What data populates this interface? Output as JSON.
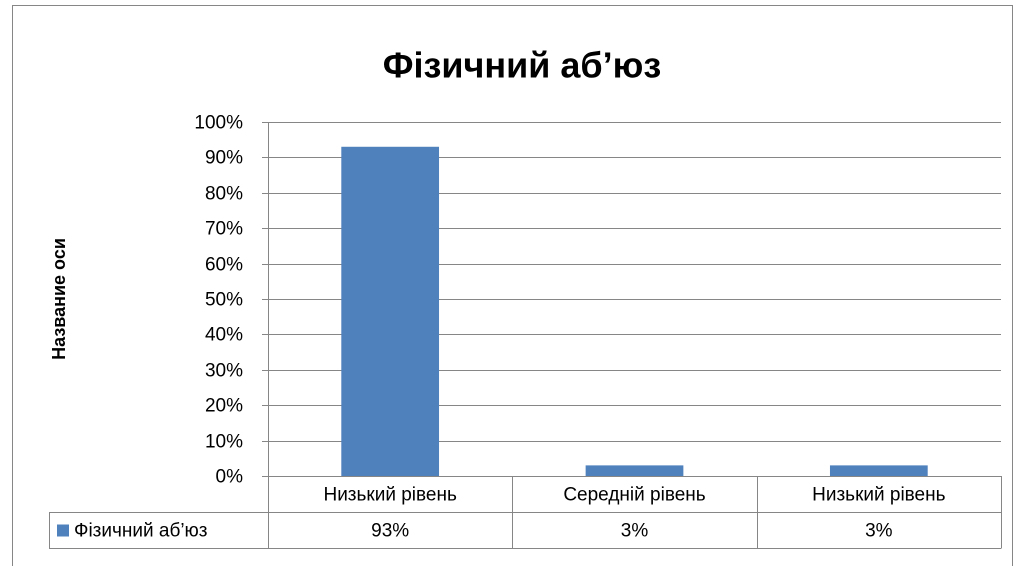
{
  "chart_data": {
    "type": "bar",
    "title": "Фізичний аб’юз",
    "y_axis_label": "Название оси",
    "categories": [
      "Низький рівень",
      "Середній рівень",
      "Низький рівень"
    ],
    "series": [
      {
        "name": "Фізичний аб’юз",
        "color": "#4f81bd",
        "values": [
          93,
          3,
          3
        ],
        "value_labels": [
          "93%",
          "3%",
          "3%"
        ]
      }
    ],
    "ylim": [
      0,
      100
    ],
    "yticks": [
      {
        "value": 0,
        "label": "0%"
      },
      {
        "value": 10,
        "label": "10%"
      },
      {
        "value": 20,
        "label": "20%"
      },
      {
        "value": 30,
        "label": "30%"
      },
      {
        "value": 40,
        "label": "40%"
      },
      {
        "value": 50,
        "label": "50%"
      },
      {
        "value": 60,
        "label": "60%"
      },
      {
        "value": 70,
        "label": "70%"
      },
      {
        "value": 80,
        "label": "80%"
      },
      {
        "value": 90,
        "label": "90%"
      },
      {
        "value": 100,
        "label": "100%"
      }
    ],
    "grid": true
  }
}
